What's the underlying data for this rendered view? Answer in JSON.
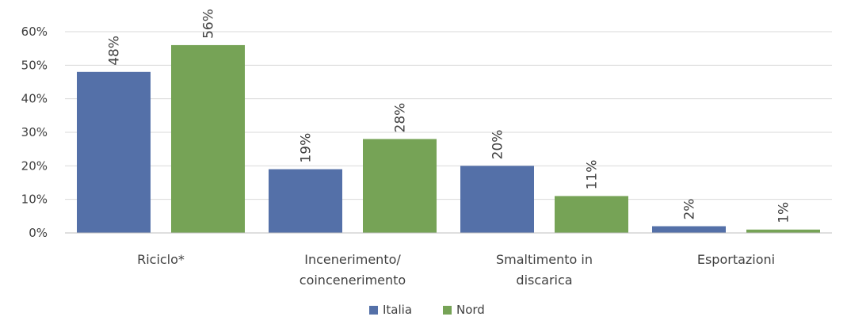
{
  "chart_data": {
    "type": "bar",
    "categories": [
      [
        "Riciclo*"
      ],
      [
        "Incenerimento/",
        "coincenerimento"
      ],
      [
        "Smaltimento in",
        "discarica"
      ],
      [
        "Esportazioni"
      ]
    ],
    "series": [
      {
        "name": "Italia",
        "color": "#5470a8",
        "values": [
          48,
          19,
          20,
          2
        ]
      },
      {
        "name": "Nord",
        "color": "#76a356",
        "values": [
          56,
          28,
          11,
          1
        ]
      }
    ],
    "data_labels": [
      [
        "48%",
        "19%",
        "20%",
        "2%"
      ],
      [
        "56%",
        "28%",
        "11%",
        "1%"
      ]
    ],
    "y_ticks": [
      0,
      10,
      20,
      30,
      40,
      50,
      60
    ],
    "y_tick_labels": [
      "0%",
      "10%",
      "20%",
      "30%",
      "40%",
      "50%",
      "60%"
    ],
    "ylim": [
      0,
      60
    ],
    "grid": true,
    "legend_position": "bottom-center",
    "grid_color": "#d9d9d9",
    "axis_color": "#bfbfbf"
  }
}
